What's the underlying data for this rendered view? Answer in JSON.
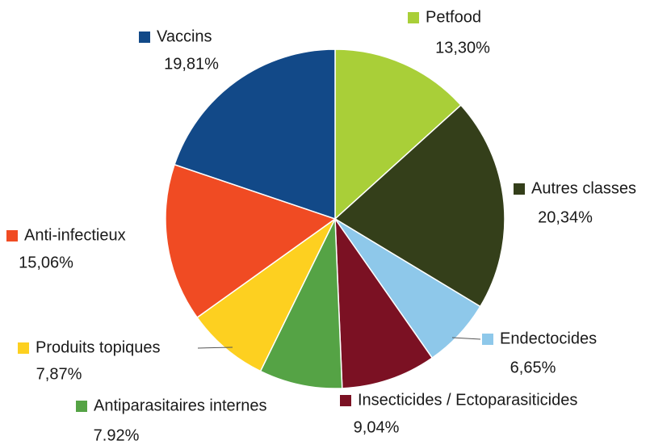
{
  "chart_data": {
    "type": "pie",
    "categories": [
      "Petfood",
      "Autres classes",
      "Endectocides",
      "Insecticides / Ectoparasiticides",
      "Antiparasitaires internes",
      "Produits topiques",
      "Anti-infectieux",
      "Vaccins"
    ],
    "values": [
      13.3,
      20.34,
      6.65,
      9.04,
      7.92,
      7.87,
      15.06,
      19.81
    ],
    "value_labels": [
      "13,30%",
      "20,34%",
      "6,65%",
      "9,04%",
      "7.92%",
      "7,87%",
      "15,06%",
      "19,81%"
    ],
    "colors": [
      "#a9cf38",
      "#343f1a",
      "#8ec8ea",
      "#7b1123",
      "#55a345",
      "#fdd020",
      "#f04b23",
      "#124988"
    ]
  }
}
